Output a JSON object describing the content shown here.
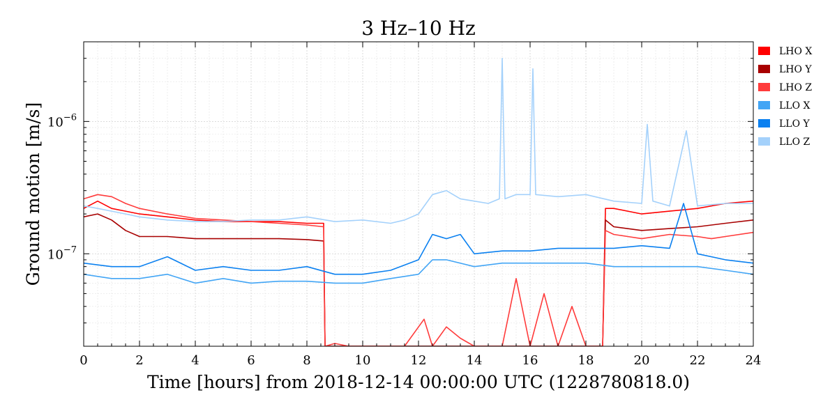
{
  "chart_data": {
    "type": "line",
    "title": "3 Hz–10 Hz",
    "xlabel": "Time [hours] from 2018-12-14 00:00:00 UTC (1228780818.0)",
    "ylabel": "Ground motion [m/s]",
    "xlim": [
      0,
      24
    ],
    "ylim": [
      2e-08,
      4e-06
    ],
    "yscale": "log",
    "grid": true,
    "legend_position": "outside-right-top",
    "xticks": [
      0,
      2,
      4,
      6,
      8,
      10,
      12,
      14,
      16,
      18,
      20,
      22,
      24
    ],
    "xtick_labels": [
      "0",
      "2",
      "4",
      "6",
      "8",
      "10",
      "12",
      "14",
      "16",
      "18",
      "20",
      "22",
      "24"
    ],
    "yticks": [
      1e-07,
      1e-06
    ],
    "ytick_labels": [
      {
        "base": "10",
        "exp": "−7"
      },
      {
        "base": "10",
        "exp": "−6"
      }
    ],
    "series": [
      {
        "name": "LHO X",
        "color": "#ff0000",
        "x": [
          0,
          0.5,
          1,
          1.5,
          2,
          3,
          4,
          5,
          6,
          7,
          8,
          8.6,
          8.65,
          9,
          10,
          11.5,
          12,
          12.5,
          13,
          14,
          15,
          16,
          17,
          18,
          18.6,
          18.7,
          19,
          20,
          21,
          22,
          23,
          24
        ],
        "y": [
          2.2e-07,
          2.5e-07,
          2.2e-07,
          2.1e-07,
          2e-07,
          1.9e-07,
          1.8e-07,
          1.75e-07,
          1.75e-07,
          1.75e-07,
          1.7e-07,
          1.7e-07,
          2e-08,
          2e-08,
          2e-08,
          2e-08,
          2e-08,
          2e-08,
          2e-08,
          2e-08,
          2e-08,
          2e-08,
          2e-08,
          2e-08,
          2e-08,
          2.2e-07,
          2.2e-07,
          2e-07,
          2.1e-07,
          2.2e-07,
          2.4e-07,
          2.5e-07
        ]
      },
      {
        "name": "LHO Y",
        "color": "#a80000",
        "x": [
          0,
          0.5,
          1,
          1.5,
          2,
          3,
          4,
          5,
          6,
          7,
          8,
          8.6,
          8.65,
          10,
          12,
          14,
          15,
          16,
          17,
          18,
          18.6,
          18.7,
          19,
          20,
          21,
          22,
          23,
          24
        ],
        "y": [
          1.9e-07,
          2e-07,
          1.8e-07,
          1.5e-07,
          1.35e-07,
          1.35e-07,
          1.3e-07,
          1.3e-07,
          1.3e-07,
          1.3e-07,
          1.28e-07,
          1.25e-07,
          2e-08,
          2e-08,
          2e-08,
          2e-08,
          2e-08,
          2e-08,
          2e-08,
          2e-08,
          2e-08,
          1.8e-07,
          1.6e-07,
          1.5e-07,
          1.55e-07,
          1.6e-07,
          1.7e-07,
          1.8e-07
        ]
      },
      {
        "name": "LHO Z",
        "color": "#ff3b3b",
        "x": [
          0,
          0.5,
          1,
          1.5,
          2,
          3,
          4,
          5,
          6,
          7,
          8,
          8.6,
          8.65,
          9,
          9.5,
          11.5,
          12.2,
          12.5,
          13,
          13.5,
          14,
          15,
          15.5,
          16,
          16.5,
          17,
          17.5,
          18,
          18.6,
          18.7,
          19,
          19.5,
          20,
          21,
          22,
          22.5,
          23,
          24
        ],
        "y": [
          2.6e-07,
          2.8e-07,
          2.7e-07,
          2.4e-07,
          2.2e-07,
          2e-07,
          1.85e-07,
          1.8e-07,
          1.75e-07,
          1.7e-07,
          1.65e-07,
          1.6e-07,
          2e-08,
          2.1e-08,
          2e-08,
          2e-08,
          3.2e-08,
          2e-08,
          2.8e-08,
          2.3e-08,
          2e-08,
          2e-08,
          6.5e-08,
          2e-08,
          5e-08,
          2e-08,
          4e-08,
          2e-08,
          2e-08,
          1.5e-07,
          1.4e-07,
          1.35e-07,
          1.3e-07,
          1.4e-07,
          1.35e-07,
          1.3e-07,
          1.35e-07,
          1.45e-07
        ]
      },
      {
        "name": "LLO X",
        "color": "#42a5f5",
        "x": [
          0,
          1,
          2,
          3,
          4,
          5,
          6,
          7,
          8,
          9,
          10,
          11,
          12,
          12.5,
          13,
          14,
          15,
          16,
          17,
          18,
          19,
          20,
          21,
          22,
          23,
          24
        ],
        "y": [
          7e-08,
          6.5e-08,
          6.5e-08,
          7e-08,
          6e-08,
          6.5e-08,
          6e-08,
          6.2e-08,
          6.2e-08,
          6e-08,
          6e-08,
          6.5e-08,
          7e-08,
          9e-08,
          9e-08,
          8e-08,
          8.5e-08,
          8.5e-08,
          8.5e-08,
          8.5e-08,
          8e-08,
          8e-08,
          8e-08,
          8e-08,
          7.5e-08,
          7e-08
        ]
      },
      {
        "name": "LLO Y",
        "color": "#0a80f0",
        "x": [
          0,
          1,
          2,
          3,
          4,
          5,
          6,
          7,
          8,
          9,
          10,
          11,
          12,
          12.5,
          13,
          13.5,
          14,
          15,
          16,
          17,
          18,
          19,
          20,
          21,
          21.5,
          22,
          23,
          24
        ],
        "y": [
          8.5e-08,
          8e-08,
          8e-08,
          9.5e-08,
          7.5e-08,
          8e-08,
          7.5e-08,
          7.5e-08,
          8e-08,
          7e-08,
          7e-08,
          7.5e-08,
          9e-08,
          1.4e-07,
          1.3e-07,
          1.4e-07,
          1e-07,
          1.05e-07,
          1.05e-07,
          1.1e-07,
          1.1e-07,
          1.1e-07,
          1.15e-07,
          1.1e-07,
          2.4e-07,
          1e-07,
          9e-08,
          8.5e-08
        ]
      },
      {
        "name": "LLO Z",
        "color": "#a4d1fb",
        "x": [
          0,
          0.5,
          1,
          1.5,
          2,
          3,
          4,
          5,
          6,
          7,
          8,
          9,
          10,
          11,
          11.5,
          12,
          12.5,
          13,
          13.5,
          14,
          14.5,
          14.9,
          15,
          15.1,
          15.5,
          16,
          16.1,
          16.2,
          17,
          18,
          19,
          20,
          20.2,
          20.4,
          21,
          21.6,
          22,
          23,
          24
        ],
        "y": [
          2.3e-07,
          2.2e-07,
          2.1e-07,
          2e-07,
          1.9e-07,
          1.8e-07,
          1.75e-07,
          1.75e-07,
          1.8e-07,
          1.8e-07,
          1.9e-07,
          1.75e-07,
          1.8e-07,
          1.7e-07,
          1.8e-07,
          2e-07,
          2.8e-07,
          3e-07,
          2.6e-07,
          2.5e-07,
          2.4e-07,
          2.6e-07,
          3e-06,
          2.6e-07,
          2.8e-07,
          2.8e-07,
          2.5e-06,
          2.8e-07,
          2.7e-07,
          2.8e-07,
          2.5e-07,
          2.4e-07,
          9.5e-07,
          2.5e-07,
          2.3e-07,
          8.5e-07,
          2.3e-07,
          2.4e-07,
          2.4e-07
        ]
      }
    ]
  }
}
